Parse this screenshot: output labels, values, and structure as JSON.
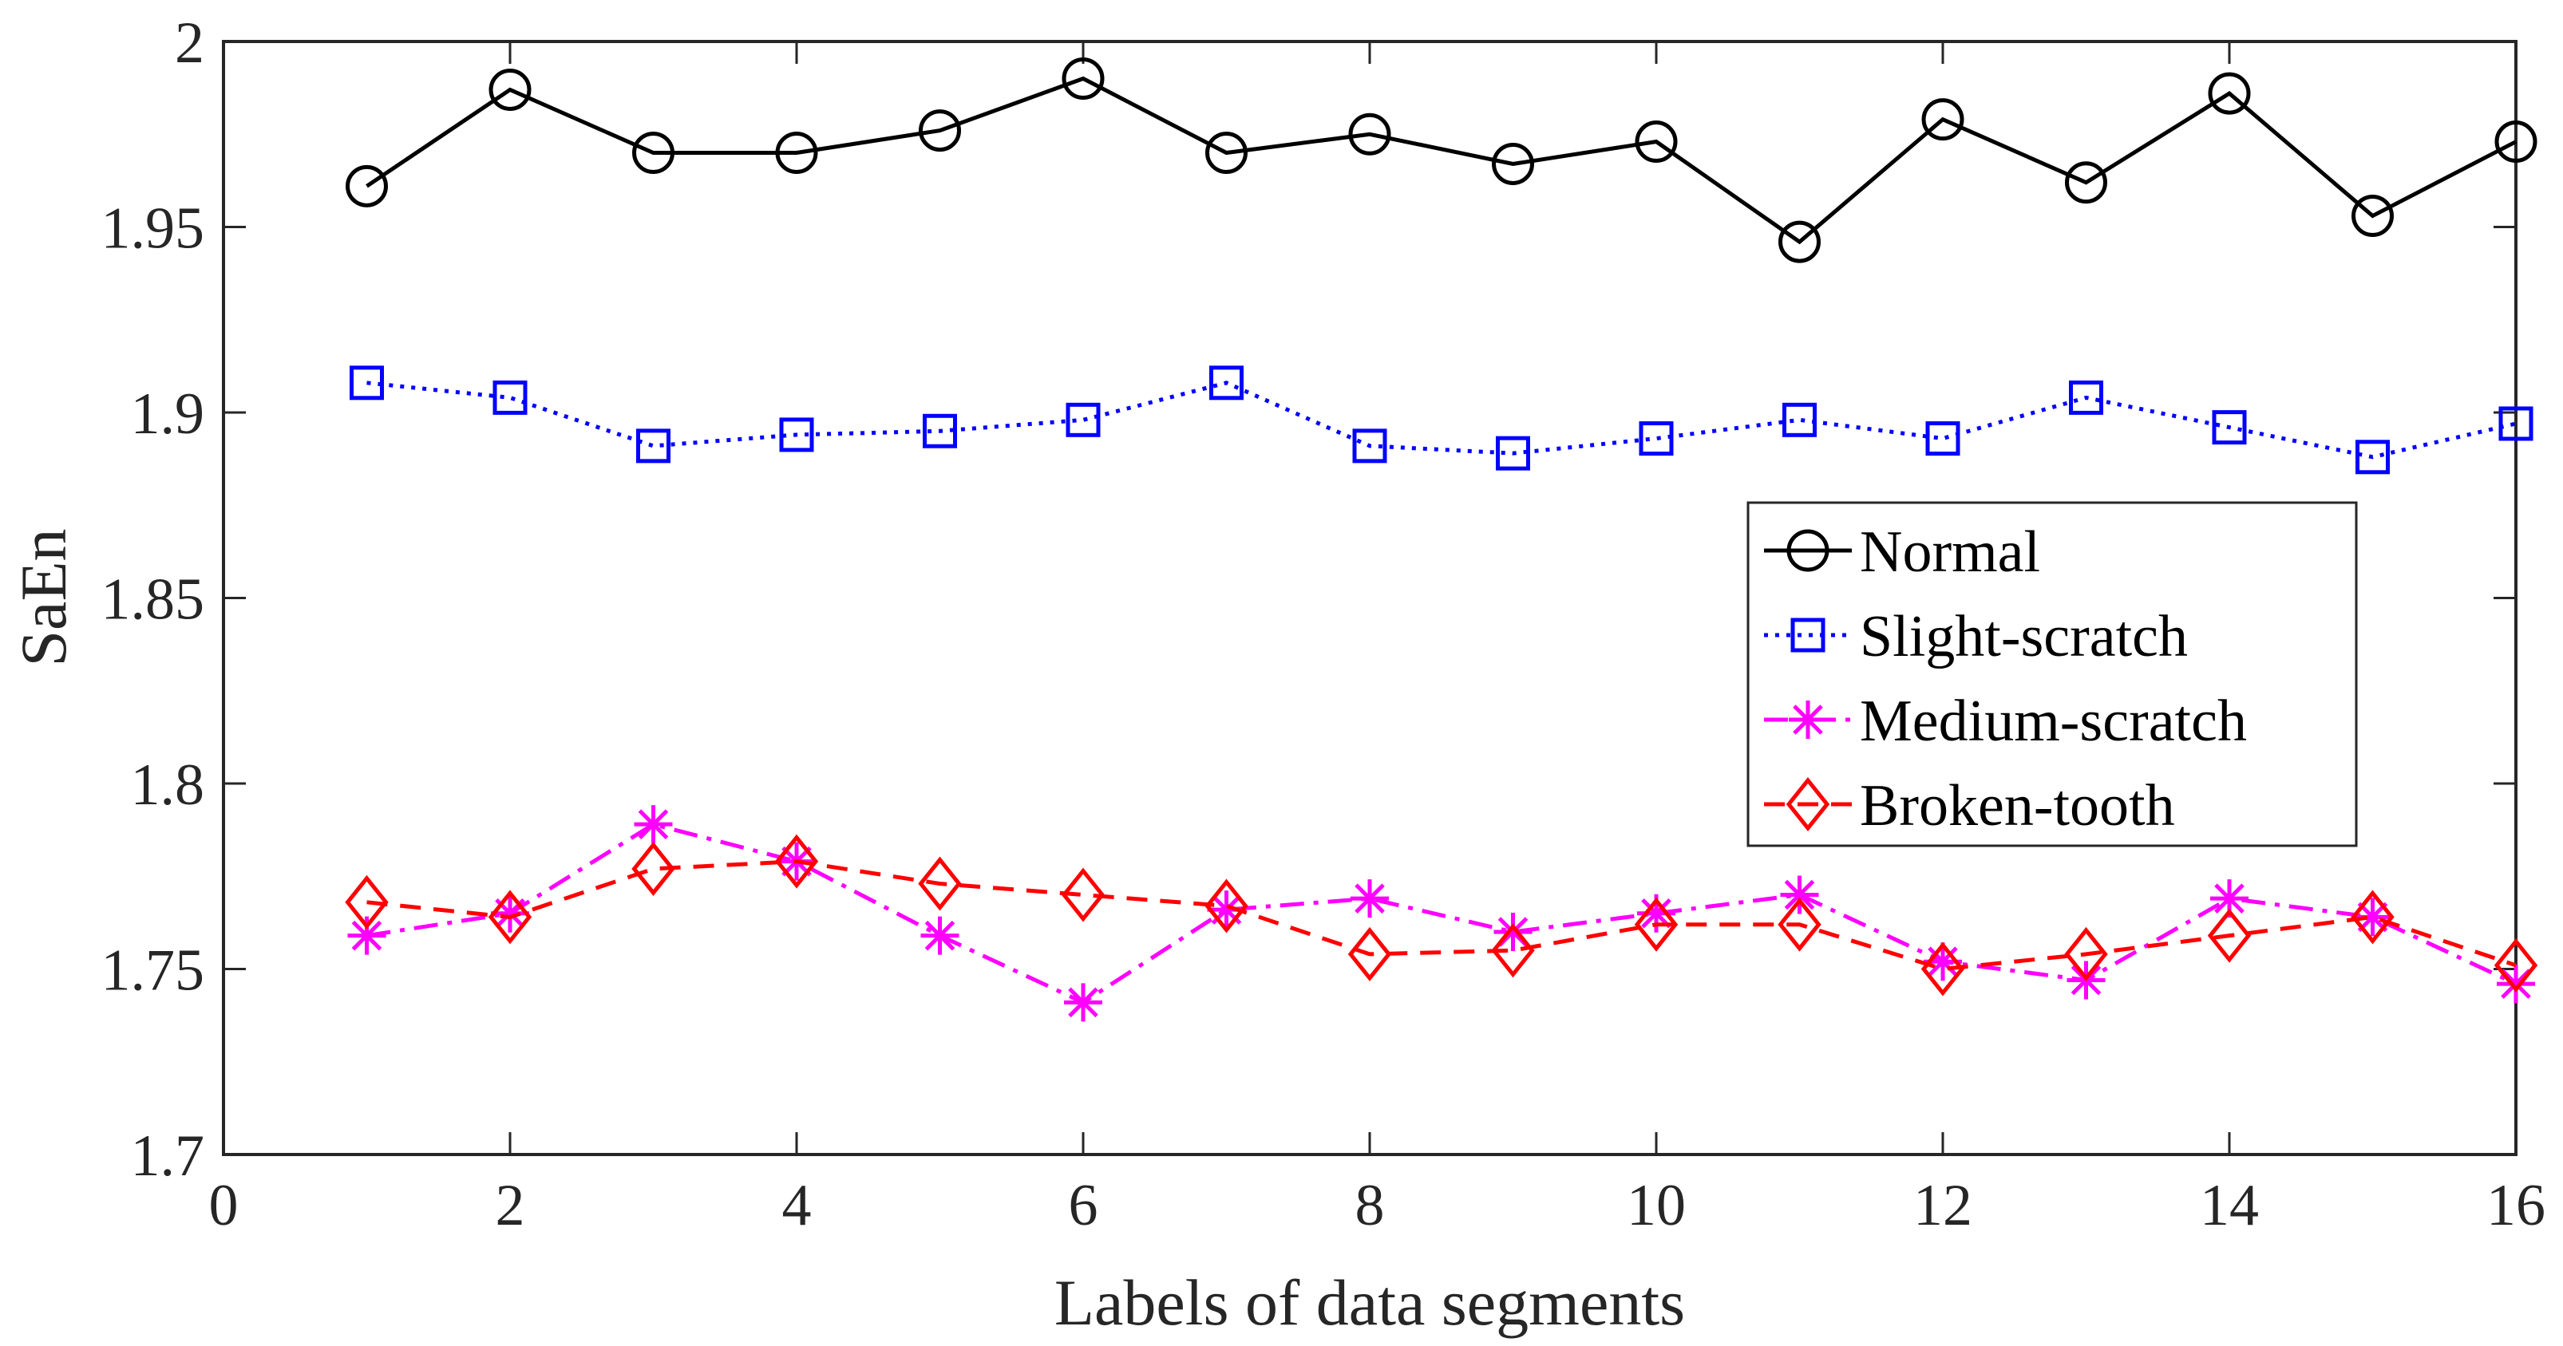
{
  "chart_data": {
    "type": "line",
    "title": "",
    "xlabel": "Labels of data segments",
    "ylabel": "SaEn",
    "xlim": [
      0,
      16
    ],
    "ylim": [
      1.7,
      2.0
    ],
    "x_ticks": [
      0,
      2,
      4,
      6,
      8,
      10,
      12,
      14,
      16
    ],
    "x_tick_labels": [
      "0",
      "2",
      "4",
      "6",
      "8",
      "10",
      "12",
      "14",
      "16"
    ],
    "y_ticks": [
      1.7,
      1.75,
      1.8,
      1.85,
      1.9,
      1.95,
      2.0
    ],
    "y_tick_labels": [
      "1.7",
      "1.75",
      "1.8",
      "1.85",
      "1.9",
      "1.95",
      "2"
    ],
    "grid": false,
    "legend_position": "center-right",
    "x": [
      1,
      2,
      3,
      4,
      5,
      6,
      7,
      8,
      9,
      10,
      11,
      12,
      13,
      14,
      15,
      16
    ],
    "series": [
      {
        "name": "Normal",
        "color": "#000000",
        "line_style": "solid",
        "marker": "circle",
        "values": [
          1.961,
          1.987,
          1.97,
          1.97,
          1.976,
          1.99,
          1.97,
          1.975,
          1.967,
          1.973,
          1.946,
          1.979,
          1.962,
          1.986,
          1.953,
          1.973
        ]
      },
      {
        "name": "Slight-scratch",
        "color": "#0000ff",
        "line_style": "dotted",
        "marker": "square",
        "values": [
          1.908,
          1.904,
          1.891,
          1.894,
          1.895,
          1.898,
          1.908,
          1.891,
          1.889,
          1.893,
          1.898,
          1.893,
          1.904,
          1.896,
          1.888,
          1.897
        ]
      },
      {
        "name": "Medium-scratch",
        "color": "#ff00ff",
        "line_style": "dashdot",
        "marker": "star",
        "values": [
          1.759,
          1.765,
          1.789,
          1.779,
          1.759,
          1.741,
          1.766,
          1.769,
          1.76,
          1.765,
          1.77,
          1.752,
          1.747,
          1.769,
          1.764,
          1.746
        ]
      },
      {
        "name": "Broken-tooth",
        "color": "#ff0000",
        "line_style": "dashed",
        "marker": "diamond",
        "values": [
          1.768,
          1.764,
          1.777,
          1.779,
          1.773,
          1.77,
          1.767,
          1.754,
          1.755,
          1.762,
          1.762,
          1.75,
          1.754,
          1.759,
          1.764,
          1.751
        ]
      }
    ]
  }
}
